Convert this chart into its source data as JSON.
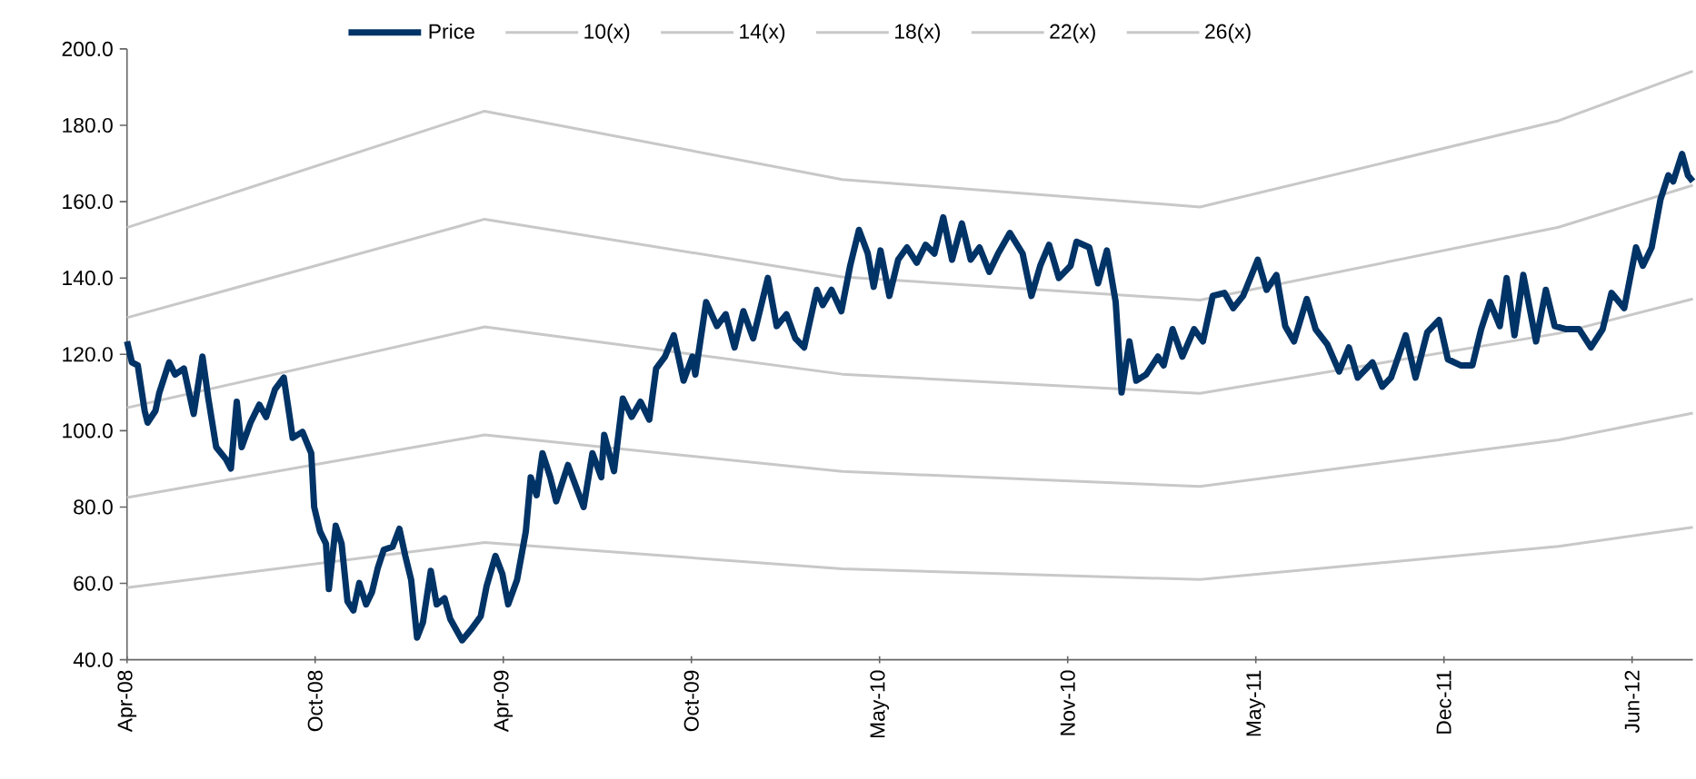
{
  "chart_data": {
    "type": "line",
    "xlim": [
      "2008-04-01",
      "2012-08-16"
    ],
    "xticks": [
      {
        "value": "2008-04-01",
        "label": "Apr-08"
      },
      {
        "value": "2008-10-10",
        "label": "Oct-08"
      },
      {
        "value": "2009-04-20",
        "label": "Apr-09"
      },
      {
        "value": "2009-10-29",
        "label": "Oct-09"
      },
      {
        "value": "2010-05-09",
        "label": "May-10"
      },
      {
        "value": "2010-11-17",
        "label": "Nov-10"
      },
      {
        "value": "2011-05-28",
        "label": "May-11"
      },
      {
        "value": "2011-12-06",
        "label": "Dec-11"
      },
      {
        "value": "2012-06-15",
        "label": "Jun-12"
      }
    ],
    "ylim": [
      40,
      200
    ],
    "yticks": [
      {
        "value": 40,
        "label": "40.0"
      },
      {
        "value": 60,
        "label": "60.0"
      },
      {
        "value": 80,
        "label": "80.0"
      },
      {
        "value": 100,
        "label": "100.0"
      },
      {
        "value": 120,
        "label": "120.0"
      },
      {
        "value": 140,
        "label": "140.0"
      },
      {
        "value": 160,
        "label": "160.0"
      },
      {
        "value": 180,
        "label": "180.0"
      },
      {
        "value": 200,
        "label": "200.0"
      }
    ],
    "legend": "top",
    "series": [
      {
        "name": "Price",
        "color": "#003366",
        "x": [
          "2008-04-01",
          "2008-04-06",
          "2008-04-12",
          "2008-04-19",
          "2008-04-22",
          "2008-04-30",
          "2008-05-04",
          "2008-05-14",
          "2008-05-20",
          "2008-05-29",
          "2008-06-08",
          "2008-06-17",
          "2008-06-23",
          "2008-07-01",
          "2008-07-11",
          "2008-07-16",
          "2008-07-22",
          "2008-07-27",
          "2008-08-05",
          "2008-08-14",
          "2008-08-21",
          "2008-08-30",
          "2008-09-08",
          "2008-09-14",
          "2008-09-17",
          "2008-09-27",
          "2008-10-06",
          "2008-10-09",
          "2008-10-15",
          "2008-10-21",
          "2008-10-24",
          "2008-10-31",
          "2008-11-06",
          "2008-11-12",
          "2008-11-18",
          "2008-11-24",
          "2008-12-01",
          "2008-12-07",
          "2008-12-13",
          "2008-12-19",
          "2008-12-28",
          "2009-01-04",
          "2009-01-10",
          "2009-01-16",
          "2009-01-22",
          "2009-01-28",
          "2009-02-05",
          "2009-02-11",
          "2009-02-19",
          "2009-02-25",
          "2009-03-09",
          "2009-03-19",
          "2009-03-28",
          "2009-04-03",
          "2009-04-12",
          "2009-04-19",
          "2009-04-25",
          "2009-05-04",
          "2009-05-13",
          "2009-05-18",
          "2009-05-24",
          "2009-05-30",
          "2009-06-07",
          "2009-06-13",
          "2009-06-25",
          "2009-07-11",
          "2009-07-20",
          "2009-07-29",
          "2009-08-01",
          "2009-08-11",
          "2009-08-20",
          "2009-08-29",
          "2009-09-07",
          "2009-09-16",
          "2009-09-23",
          "2009-10-02",
          "2009-10-11",
          "2009-10-21",
          "2009-10-30",
          "2009-11-02",
          "2009-11-13",
          "2009-11-24",
          "2009-12-03",
          "2009-12-12",
          "2009-12-21",
          "2009-12-31",
          "2010-01-15",
          "2010-01-24",
          "2010-02-03",
          "2010-02-12",
          "2010-02-21",
          "2010-03-06",
          "2010-03-12",
          "2010-03-21",
          "2010-03-31",
          "2010-04-09",
          "2010-04-18",
          "2010-04-27",
          "2010-05-03",
          "2010-05-10",
          "2010-05-19",
          "2010-05-28",
          "2010-06-06",
          "2010-06-16",
          "2010-06-25",
          "2010-07-04",
          "2010-07-13",
          "2010-07-22",
          "2010-08-01",
          "2010-08-10",
          "2010-08-19",
          "2010-08-29",
          "2010-09-07",
          "2010-09-19",
          "2010-10-02",
          "2010-10-11",
          "2010-10-20",
          "2010-10-29",
          "2010-11-08",
          "2010-11-20",
          "2010-11-26",
          "2010-12-09",
          "2010-12-18",
          "2010-12-27",
          "2011-01-05",
          "2011-01-11",
          "2011-01-19",
          "2011-01-26",
          "2011-02-05",
          "2011-02-17",
          "2011-02-23",
          "2011-03-04",
          "2011-03-14",
          "2011-03-26",
          "2011-04-04",
          "2011-04-14",
          "2011-04-26",
          "2011-05-05",
          "2011-05-15",
          "2011-05-30",
          "2011-06-08",
          "2011-06-18",
          "2011-06-27",
          "2011-07-06",
          "2011-07-19",
          "2011-07-28",
          "2011-08-09",
          "2011-08-21",
          "2011-08-31",
          "2011-09-09",
          "2011-09-24",
          "2011-10-04",
          "2011-10-13",
          "2011-10-28",
          "2011-11-07",
          "2011-11-19",
          "2011-12-01",
          "2011-12-10",
          "2011-12-23",
          "2012-01-04",
          "2012-01-13",
          "2012-01-22",
          "2012-02-01",
          "2012-02-08",
          "2012-02-16",
          "2012-02-25",
          "2012-03-09",
          "2012-03-19",
          "2012-03-28",
          "2012-04-09",
          "2012-04-22",
          "2012-05-04",
          "2012-05-16",
          "2012-05-25",
          "2012-06-07",
          "2012-06-19",
          "2012-06-26",
          "2012-07-05",
          "2012-07-14",
          "2012-07-22",
          "2012-07-27",
          "2012-08-05",
          "2012-08-11",
          "2012-08-16"
        ],
        "values": [
          123.4,
          117.9,
          117.1,
          105.2,
          102.1,
          105.2,
          110,
          117.9,
          114.7,
          116.3,
          104.4,
          119.4,
          108.4,
          95.7,
          92.5,
          90.1,
          107.6,
          95.7,
          102.1,
          106.8,
          103.6,
          110.8,
          113.9,
          103.6,
          98.1,
          99.7,
          94.1,
          80,
          73.6,
          70.4,
          58.5,
          75.1,
          70.4,
          55.3,
          52.9,
          60.1,
          54.5,
          57.7,
          64.1,
          68.8,
          69.6,
          74.3,
          67.2,
          60.9,
          45.8,
          49.8,
          63.3,
          54.5,
          56.1,
          50.6,
          45.1,
          48.2,
          51.4,
          59.3,
          67.2,
          62.5,
          54.5,
          60.9,
          73.6,
          87.8,
          83.1,
          94.1,
          87.8,
          81.5,
          91,
          80,
          94.1,
          87.8,
          98.9,
          89.4,
          108.4,
          103.6,
          107.6,
          102.9,
          116.3,
          119.4,
          125,
          113.1,
          119.4,
          114.7,
          133.7,
          127.4,
          130.5,
          121.8,
          131.3,
          124.2,
          140,
          127.4,
          130.5,
          124.2,
          121.8,
          136.9,
          132.9,
          136.9,
          131.3,
          143.2,
          152.6,
          146.4,
          137.7,
          147.2,
          135.3,
          144.8,
          148,
          144,
          148.7,
          146.4,
          155.9,
          144.8,
          154.3,
          144.8,
          148,
          141.6,
          146.4,
          151.8,
          146.4,
          135.3,
          143.2,
          148.7,
          140,
          143.2,
          149.5,
          148,
          138.6,
          147.2,
          133.7,
          110,
          123.4,
          113.1,
          114.7,
          119.4,
          117.1,
          126.6,
          119.4,
          126.6,
          123.4,
          135.3,
          136.1,
          132.1,
          135.3,
          144.8,
          136.9,
          140.8,
          127.4,
          123.4,
          134.5,
          126.6,
          122.6,
          115.5,
          121.8,
          113.9,
          117.9,
          111.5,
          113.9,
          125,
          113.9,
          125.8,
          129,
          118.7,
          117.1,
          117.1,
          126.6,
          133.7,
          127.4,
          140,
          125,
          140.8,
          123.4,
          136.9,
          127.4,
          126.6,
          126.6,
          121.8,
          126.6,
          136.1,
          132.1,
          148,
          143.2,
          148,
          160.6,
          166.9,
          165.3,
          172.5,
          166.9,
          165.3
        ]
      },
      {
        "name": "10(x)",
        "color": "#c8c8c8",
        "x": [
          "2008-04-01",
          "2009-04-01",
          "2010-04-01",
          "2011-04-01",
          "2012-04-01",
          "2012-08-16"
        ],
        "values": [
          58.9,
          70.7,
          63.8,
          61.0,
          69.7,
          74.7
        ]
      },
      {
        "name": "14(x)",
        "color": "#c8c8c8",
        "x": [
          "2008-04-01",
          "2009-04-01",
          "2010-04-01",
          "2011-04-01",
          "2012-04-01",
          "2012-08-16"
        ],
        "values": [
          82.5,
          98.9,
          89.3,
          85.4,
          97.6,
          104.6
        ]
      },
      {
        "name": "18(x)",
        "color": "#c8c8c8",
        "x": [
          "2008-04-01",
          "2009-04-01",
          "2010-04-01",
          "2011-04-01",
          "2012-04-01",
          "2012-08-16"
        ],
        "values": [
          106.0,
          127.2,
          114.8,
          109.8,
          125.5,
          134.5
        ]
      },
      {
        "name": "22(x)",
        "color": "#c8c8c8",
        "x": [
          "2008-04-01",
          "2009-04-01",
          "2010-04-01",
          "2011-04-01",
          "2012-04-01",
          "2012-08-16"
        ],
        "values": [
          129.6,
          155.4,
          140.3,
          134.2,
          153.3,
          164.3
        ]
      },
      {
        "name": "26(x)",
        "color": "#c8c8c8",
        "x": [
          "2008-04-01",
          "2009-04-01",
          "2010-04-01",
          "2011-04-01",
          "2012-04-01",
          "2012-08-16"
        ],
        "values": [
          153.2,
          183.7,
          165.8,
          158.6,
          181.2,
          194.2
        ]
      }
    ]
  }
}
